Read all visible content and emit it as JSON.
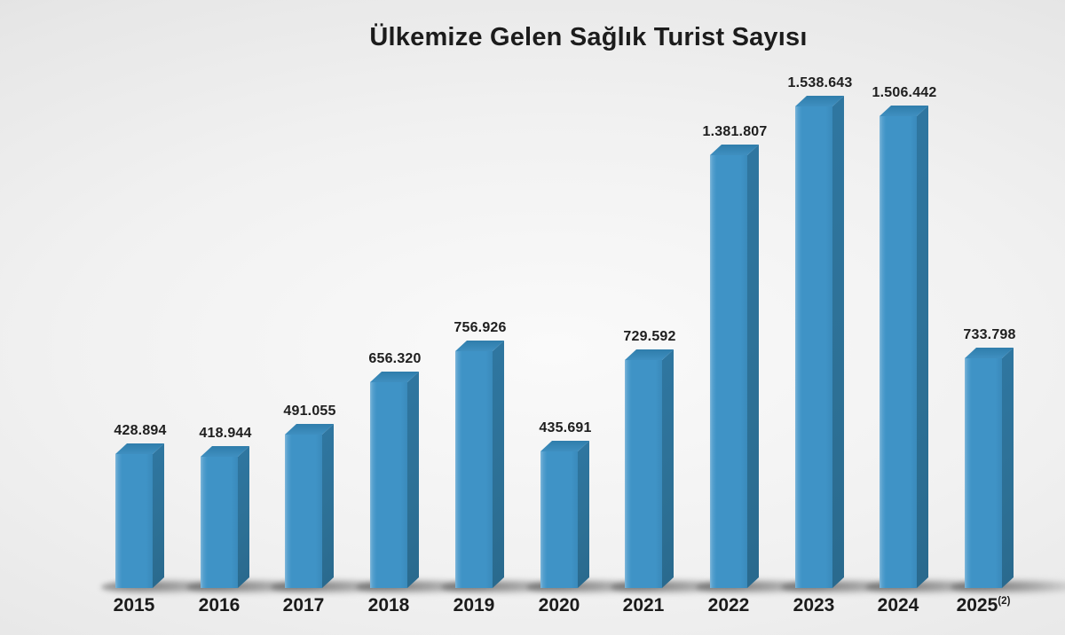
{
  "title": "Ülkemize Gelen Sağlık Turist Sayısı",
  "chart_data": {
    "type": "bar",
    "title": "Ülkemize Gelen Sağlık Turist Sayısı",
    "xlabel": "",
    "ylabel": "",
    "grid": false,
    "legend": null,
    "ylim": [
      0,
      1600000
    ],
    "categories": [
      "2015",
      "2016",
      "2017",
      "2018",
      "2019",
      "2020",
      "2021",
      "2022",
      "2023",
      "2024",
      "2025"
    ],
    "category_suffixes": [
      "",
      "",
      "",
      "",
      "",
      "",
      "",
      "",
      "",
      "",
      "(2)"
    ],
    "values": [
      428894,
      418944,
      491055,
      656320,
      756926,
      435691,
      729592,
      1381807,
      1538643,
      1506442,
      733798
    ],
    "value_labels": [
      "428.894",
      "418.944",
      "491.055",
      "656.320",
      "756.926",
      "435.691",
      "729.592",
      "1.381.807",
      "1.538.643",
      "1.506.442",
      "733.798"
    ],
    "colors": {
      "bar_front": "#3f93c6",
      "bar_side": "#2d7095",
      "bar_top": "#2f7dab",
      "label": "#1e1e1e",
      "background": "#ececec"
    }
  }
}
